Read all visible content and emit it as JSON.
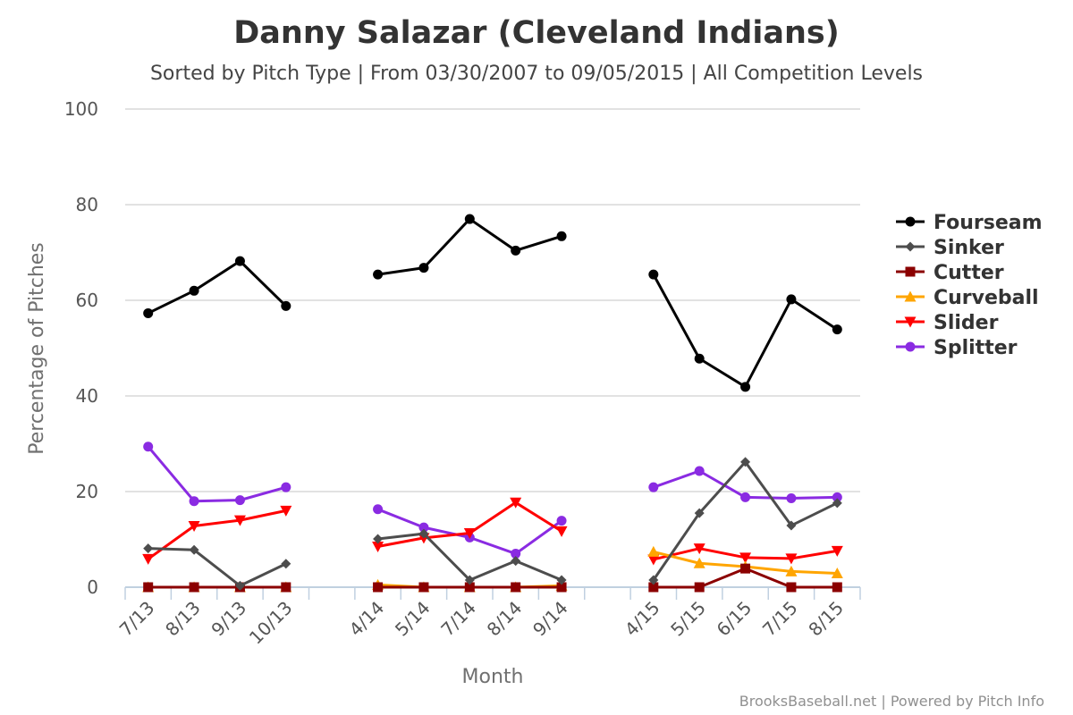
{
  "chart_data": {
    "type": "line",
    "title": "Danny Salazar (Cleveland Indians)",
    "subtitle": "Sorted by Pitch Type | From 03/30/2007 to 09/05/2015 | All Competition Levels",
    "xlabel": "Month",
    "ylabel": "Percentage of Pitches",
    "ylim": [
      0,
      100
    ],
    "yticks": [
      0,
      20,
      40,
      60,
      80,
      100
    ],
    "grid": true,
    "legend_position": "right",
    "credits": "BrooksBaseball.net | Powered by Pitch Info",
    "categories": [
      "7/13",
      "8/13",
      "9/13",
      "10/13",
      "",
      "4/14",
      "5/14",
      "7/14",
      "8/14",
      "9/14",
      "",
      "4/15",
      "5/15",
      "6/15",
      "7/15",
      "8/15"
    ],
    "series": [
      {
        "name": "Fourseam",
        "color": "#000000",
        "marker": "circle",
        "values": [
          57.3,
          62.0,
          68.2,
          58.8,
          null,
          65.4,
          66.8,
          77.0,
          70.4,
          73.4,
          null,
          65.4,
          47.8,
          41.9,
          60.2,
          53.9
        ]
      },
      {
        "name": "Sinker",
        "color": "#4d4d4d",
        "marker": "diamond",
        "values": [
          8.1,
          7.8,
          0.3,
          4.9,
          null,
          10.1,
          11.2,
          1.5,
          5.5,
          1.5,
          null,
          1.5,
          15.5,
          26.2,
          12.9,
          17.6
        ]
      },
      {
        "name": "Cutter",
        "color": "#8b0000",
        "marker": "square",
        "values": [
          0,
          0,
          0,
          0,
          null,
          0,
          0,
          0,
          0,
          0,
          null,
          0,
          0,
          3.9,
          0,
          0
        ]
      },
      {
        "name": "Curveball",
        "color": "#ffa500",
        "marker": "triangle",
        "values": [
          0,
          0,
          0,
          0,
          null,
          0.5,
          0,
          0,
          0,
          0.3,
          null,
          7.4,
          5.0,
          4.3,
          3.3,
          2.9
        ]
      },
      {
        "name": "Slider",
        "color": "#ff0000",
        "marker": "triangle-down",
        "values": [
          5.9,
          12.8,
          14.0,
          16.0,
          null,
          8.5,
          10.3,
          11.3,
          17.7,
          11.7,
          null,
          5.8,
          8.1,
          6.2,
          6.0,
          7.6
        ]
      },
      {
        "name": "Splitter",
        "color": "#8a2be2",
        "marker": "circle",
        "values": [
          29.4,
          18.0,
          18.2,
          20.9,
          null,
          16.3,
          12.5,
          10.4,
          7.0,
          13.9,
          null,
          20.9,
          24.3,
          18.8,
          18.6,
          18.8
        ]
      }
    ]
  }
}
